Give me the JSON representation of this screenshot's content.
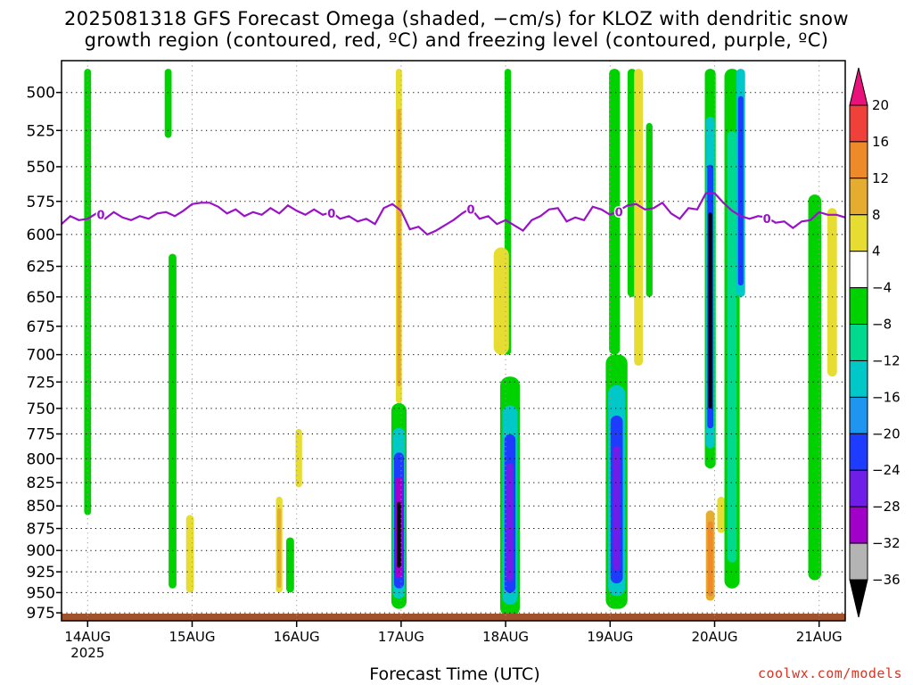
{
  "title_line1": "2025081318 GFS Forecast Omega (shaded, −cm/s) for KLOZ with dendritic snow",
  "title_line2": "growth region (contoured, red, ºC) and freezing level (contoured, purple, ºC)",
  "credit": "coolwx.com/models",
  "chart_data": {
    "type": "heatmap",
    "xlabel": "Forecast Time (UTC)",
    "x_ticks": [
      {
        "label": "14AUG",
        "sub": "2025",
        "hour": 0
      },
      {
        "label": "15AUG",
        "sub": "",
        "hour": 24
      },
      {
        "label": "16AUG",
        "sub": "",
        "hour": 48
      },
      {
        "label": "17AUG",
        "sub": "",
        "hour": 72
      },
      {
        "label": "18AUG",
        "sub": "",
        "hour": 96
      },
      {
        "label": "19AUG",
        "sub": "",
        "hour": 120
      },
      {
        "label": "20AUG",
        "sub": "",
        "hour": 144
      },
      {
        "label": "21AUG",
        "sub": "",
        "hour": 168
      }
    ],
    "x_range_hours": [
      -6,
      174
    ],
    "y_ticks": [
      500,
      525,
      550,
      575,
      600,
      625,
      650,
      675,
      700,
      725,
      750,
      775,
      800,
      825,
      850,
      875,
      900,
      925,
      950,
      975
    ],
    "y_range_hpa": [
      480,
      985
    ],
    "y_scale": "log-pressure",
    "grid": "dotted",
    "colorbar": {
      "labels": [
        "20",
        "16",
        "12",
        "8",
        "4",
        "−4",
        "−8",
        "−12",
        "−16",
        "−20",
        "−24",
        "−28",
        "−32",
        "−36"
      ],
      "bins": [
        {
          "min": 20,
          "max": 99,
          "color": "#e8127a"
        },
        {
          "min": 16,
          "max": 20,
          "color": "#f0403a"
        },
        {
          "min": 12,
          "max": 16,
          "color": "#ef8a2a"
        },
        {
          "min": 8,
          "max": 12,
          "color": "#e6ac30"
        },
        {
          "min": 4,
          "max": 8,
          "color": "#e6dc32"
        },
        {
          "min": -4,
          "max": 4,
          "color": "#ffffff"
        },
        {
          "min": -8,
          "max": -4,
          "color": "#00d200"
        },
        {
          "min": -12,
          "max": -8,
          "color": "#00d98e"
        },
        {
          "min": -16,
          "max": -12,
          "color": "#00c8c8"
        },
        {
          "min": -20,
          "max": -16,
          "color": "#1e96f0"
        },
        {
          "min": -24,
          "max": -20,
          "color": "#1e3cff"
        },
        {
          "min": -28,
          "max": -24,
          "color": "#6e1ee6"
        },
        {
          "min": -32,
          "max": -28,
          "color": "#a000c8"
        },
        {
          "min": -36,
          "max": -32,
          "color": "#b4b4b4"
        },
        {
          "min": -99,
          "max": -36,
          "color": "#000000"
        }
      ]
    },
    "freezing_level": {
      "label": "0",
      "color": "#9a12c8",
      "hours": [
        -6,
        -4,
        -2,
        0,
        2,
        4,
        6,
        8,
        10,
        12,
        14,
        16,
        18,
        20,
        22,
        24,
        26,
        28,
        30,
        32,
        34,
        36,
        38,
        40,
        42,
        44,
        46,
        48,
        50,
        52,
        54,
        56,
        58,
        60,
        62,
        64,
        66,
        68,
        70,
        72,
        74,
        76,
        78,
        80,
        82,
        84,
        86,
        88,
        90,
        92,
        94,
        96,
        98,
        100,
        102,
        104,
        106,
        108,
        110,
        112,
        114,
        116,
        118,
        120,
        122,
        124,
        126,
        128,
        130,
        132,
        134,
        136,
        138,
        140,
        142,
        144,
        146,
        148,
        150,
        152,
        154,
        156,
        158,
        160,
        162,
        164,
        166,
        168,
        170,
        172,
        174
      ],
      "hpa": [
        592,
        586,
        589,
        588,
        584,
        588,
        583,
        587,
        589,
        586,
        588,
        584,
        583,
        586,
        582,
        577,
        576,
        576,
        579,
        584,
        581,
        586,
        583,
        585,
        580,
        584,
        578,
        582,
        585,
        581,
        585,
        583,
        588,
        586,
        590,
        588,
        592,
        580,
        577,
        582,
        596,
        594,
        600,
        597,
        593,
        589,
        584,
        580,
        588,
        586,
        592,
        589,
        593,
        597,
        589,
        586,
        581,
        580,
        590,
        587,
        589,
        579,
        581,
        585,
        582,
        578,
        577,
        581,
        580,
        576,
        584,
        588,
        580,
        581,
        569,
        569,
        576,
        582,
        586,
        588,
        586,
        587,
        591,
        590,
        595,
        590,
        589,
        583,
        585,
        585,
        587
      ],
      "label_hours": [
        3,
        56,
        88,
        122,
        156
      ]
    },
    "omega_cells": [
      {
        "t0": -6,
        "t1": 174,
        "p0": 976,
        "p1": 985,
        "v": 0,
        "note": "ground"
      }
    ],
    "omega_columns": [
      {
        "t": 0.0,
        "w": 1.6,
        "p0": 485,
        "p1": 860,
        "layers": [
          -6
        ]
      },
      {
        "t": 18.5,
        "w": 1.6,
        "p0": 485,
        "p1": 530,
        "layers": [
          -6
        ]
      },
      {
        "t": 19.5,
        "w": 1.8,
        "p0": 615,
        "p1": 945,
        "layers": [
          -6
        ]
      },
      {
        "t": 23.5,
        "w": 1.8,
        "p0": 860,
        "p1": 950,
        "layers": [
          6
        ]
      },
      {
        "t": 44.0,
        "w": 1.5,
        "p0": 840,
        "p1": 950,
        "layers": [
          6,
          10
        ]
      },
      {
        "t": 46.5,
        "w": 1.8,
        "p0": 885,
        "p1": 950,
        "layers": [
          -6
        ]
      },
      {
        "t": 48.5,
        "w": 1.5,
        "p0": 770,
        "p1": 830,
        "layers": [
          6
        ]
      },
      {
        "t": 71.5,
        "w": 3.5,
        "p0": 745,
        "p1": 970,
        "layers": [
          -8,
          -14,
          -24,
          -32,
          -40
        ]
      },
      {
        "t": 71.5,
        "w": 1.4,
        "p0": 485,
        "p1": 745,
        "layers": [
          6,
          10
        ]
      },
      {
        "t": 97.0,
        "w": 4.5,
        "p0": 720,
        "p1": 980,
        "layers": [
          -8,
          -14,
          -22,
          -28
        ]
      },
      {
        "t": 96.5,
        "w": 1.5,
        "p0": 485,
        "p1": 700,
        "layers": [
          -6
        ]
      },
      {
        "t": 95.0,
        "w": 3.5,
        "p0": 610,
        "p1": 700,
        "layers": [
          6
        ]
      },
      {
        "t": 121.5,
        "w": 5.0,
        "p0": 700,
        "p1": 970,
        "layers": [
          -8,
          -14,
          -22,
          -28
        ]
      },
      {
        "t": 121.0,
        "w": 2.5,
        "p0": 485,
        "p1": 700,
        "layers": [
          -6
        ]
      },
      {
        "t": 125.0,
        "w": 2.0,
        "p0": 485,
        "p1": 650,
        "layers": [
          -6
        ]
      },
      {
        "t": 126.5,
        "w": 2.0,
        "p0": 485,
        "p1": 710,
        "layers": [
          6
        ]
      },
      {
        "t": 129.0,
        "w": 1.5,
        "p0": 520,
        "p1": 650,
        "layers": [
          -6
        ]
      },
      {
        "t": 143.0,
        "w": 2.5,
        "p0": 485,
        "p1": 810,
        "layers": [
          -8,
          -14,
          -22,
          -40
        ]
      },
      {
        "t": 143.0,
        "w": 2.0,
        "p0": 855,
        "p1": 960,
        "layers": [
          8,
          12
        ]
      },
      {
        "t": 145.5,
        "w": 1.8,
        "p0": 840,
        "p1": 880,
        "layers": [
          6
        ]
      },
      {
        "t": 148.0,
        "w": 3.5,
        "p0": 485,
        "p1": 945,
        "layers": [
          -6,
          -10
        ]
      },
      {
        "t": 150.0,
        "w": 2.0,
        "p0": 485,
        "p1": 650,
        "layers": [
          -14,
          -22
        ]
      },
      {
        "t": 167.0,
        "w": 3.0,
        "p0": 570,
        "p1": 935,
        "layers": [
          -6
        ]
      },
      {
        "t": 171.0,
        "w": 2.2,
        "p0": 580,
        "p1": 720,
        "layers": [
          6
        ]
      }
    ]
  }
}
